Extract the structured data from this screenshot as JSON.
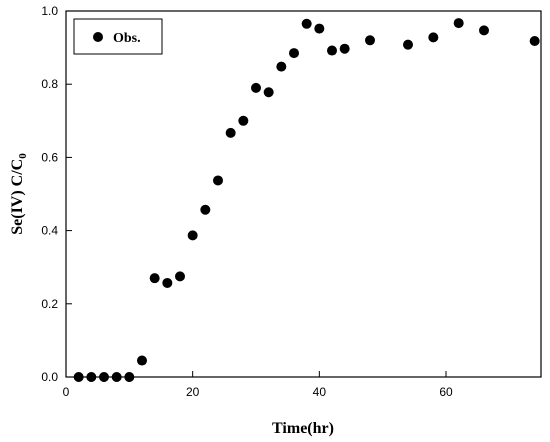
{
  "chart_data": {
    "type": "scatter",
    "xlabel": "Time(hr)",
    "ylabel_main": "Se(IV) C/C",
    "ylabel_sub": "0",
    "xlim": [
      0,
      75
    ],
    "ylim": [
      0,
      1.0
    ],
    "xticks": [
      0,
      20,
      40,
      60
    ],
    "yticks": [
      0.0,
      0.2,
      0.4,
      0.6,
      0.8,
      1.0
    ],
    "ytick_labels": [
      "0.0",
      "0.2",
      "0.4",
      "0.6",
      "0.8",
      "1.0"
    ],
    "grid": false,
    "legend_position": "top-left",
    "series": [
      {
        "name": "Obs.",
        "marker_color": "#000000",
        "x": [
          2,
          4,
          6,
          8,
          10,
          12,
          14,
          16,
          18,
          20,
          22,
          24,
          26,
          28,
          30,
          32,
          34,
          36,
          38,
          40,
          42,
          44,
          48,
          54,
          58,
          62,
          66,
          74
        ],
        "y": [
          0.0,
          0.0,
          0.0,
          0.0,
          0.0,
          0.045,
          0.27,
          0.257,
          0.275,
          0.387,
          0.457,
          0.537,
          0.667,
          0.7,
          0.79,
          0.778,
          0.848,
          0.885,
          0.965,
          0.952,
          0.892,
          0.897,
          0.92,
          0.908,
          0.928,
          0.967,
          0.947,
          0.918
        ]
      }
    ]
  }
}
